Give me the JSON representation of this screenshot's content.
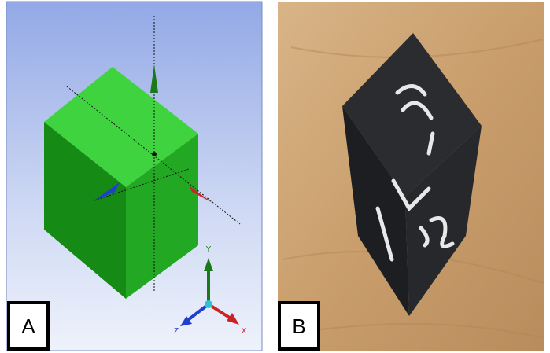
{
  "panels": [
    {
      "label": "A",
      "axes": {
        "y": "Y",
        "z": "Z",
        "x": "X"
      }
    },
    {
      "label": "B"
    }
  ]
}
